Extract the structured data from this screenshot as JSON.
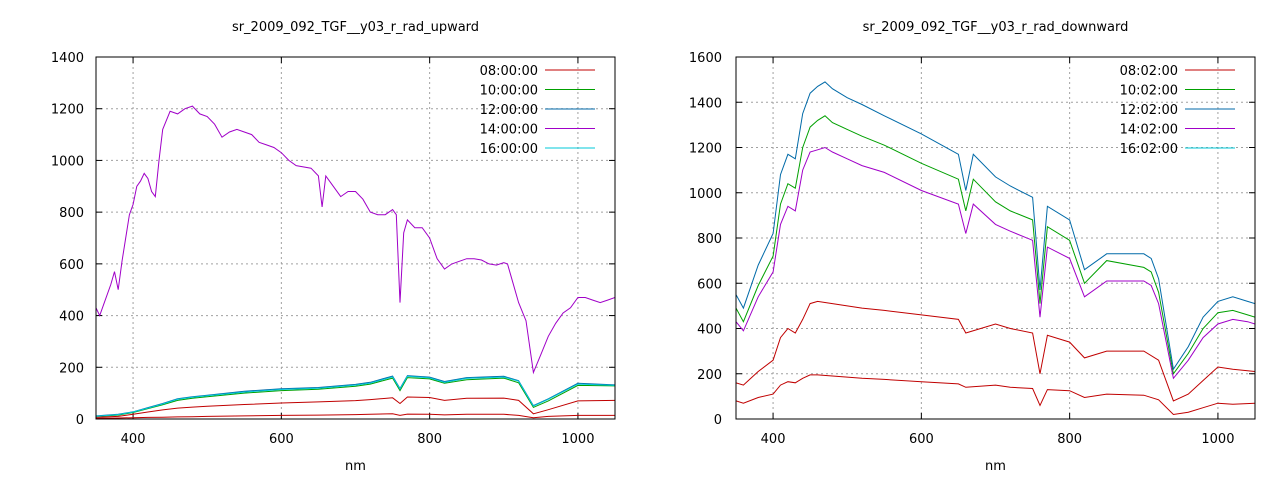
{
  "chart_data": [
    {
      "type": "line",
      "title": "sr_2009_092_TGF__y03_r_rad_upward",
      "xlabel": "nm",
      "ylabel": "",
      "xlim": [
        350,
        1050
      ],
      "ylim": [
        0,
        1400
      ],
      "xticks": [
        400,
        600,
        800,
        1000
      ],
      "yticks": [
        0,
        200,
        400,
        600,
        800,
        1000,
        1200,
        1400
      ],
      "grid": true,
      "legend": "top-right",
      "series": [
        {
          "name": "08:00:00",
          "color": "#c00000",
          "x": [
            350,
            380,
            400,
            420,
            440,
            460,
            480,
            500,
            550,
            600,
            650,
            700,
            720,
            750,
            760,
            770,
            800,
            820,
            850,
            900,
            920,
            940,
            960,
            1000,
            1050
          ],
          "y": [
            3,
            4,
            5,
            6,
            7,
            8,
            9,
            10,
            12,
            14,
            15,
            17,
            18,
            20,
            14,
            19,
            18,
            16,
            18,
            18,
            14,
            5,
            10,
            14,
            14
          ]
        },
        {
          "name": "08:00:00",
          "color": "#c00000",
          "x": [
            350,
            380,
            400,
            420,
            440,
            460,
            480,
            500,
            550,
            600,
            650,
            700,
            720,
            750,
            760,
            770,
            800,
            820,
            850,
            900,
            920,
            940,
            960,
            1000,
            1050
          ],
          "y": [
            7,
            10,
            18,
            27,
            35,
            42,
            46,
            49,
            56,
            62,
            66,
            71,
            75,
            82,
            60,
            85,
            83,
            72,
            80,
            81,
            72,
            20,
            36,
            70,
            72
          ]
        },
        {
          "name": "10:00:00",
          "color": "#00a000",
          "x": [
            350,
            380,
            400,
            420,
            440,
            460,
            480,
            500,
            550,
            600,
            650,
            700,
            720,
            750,
            760,
            770,
            800,
            820,
            850,
            900,
            920,
            940,
            960,
            1000,
            1050
          ],
          "y": [
            10,
            15,
            25,
            40,
            55,
            72,
            80,
            86,
            100,
            110,
            115,
            127,
            135,
            158,
            110,
            160,
            155,
            138,
            152,
            158,
            140,
            45,
            70,
            130,
            128
          ]
        },
        {
          "name": "12:00:00",
          "color": "#006aa8",
          "x": [
            350,
            380,
            400,
            420,
            440,
            460,
            480,
            500,
            550,
            600,
            650,
            700,
            720,
            750,
            760,
            770,
            800,
            820,
            850,
            900,
            920,
            940,
            960,
            1000,
            1050
          ],
          "y": [
            12,
            18,
            28,
            44,
            60,
            78,
            86,
            92,
            107,
            117,
            122,
            134,
            142,
            166,
            118,
            168,
            162,
            145,
            160,
            165,
            148,
            52,
            78,
            138,
            132
          ]
        },
        {
          "name": "14:00:00",
          "color": "#a000c8",
          "x": [
            350,
            355,
            360,
            370,
            375,
            380,
            385,
            390,
            395,
            400,
            405,
            410,
            415,
            420,
            425,
            430,
            435,
            440,
            450,
            460,
            470,
            480,
            490,
            500,
            510,
            520,
            530,
            540,
            550,
            560,
            570,
            580,
            590,
            600,
            610,
            620,
            640,
            650,
            655,
            660,
            670,
            680,
            690,
            700,
            710,
            720,
            730,
            740,
            750,
            755,
            760,
            765,
            770,
            780,
            790,
            800,
            810,
            820,
            830,
            840,
            850,
            860,
            870,
            880,
            890,
            900,
            905,
            910,
            920,
            930,
            940,
            950,
            960,
            970,
            980,
            990,
            1000,
            1010,
            1020,
            1030,
            1040,
            1050
          ],
          "y": [
            430,
            400,
            440,
            520,
            570,
            500,
            610,
            700,
            790,
            830,
            900,
            920,
            950,
            930,
            880,
            860,
            1000,
            1120,
            1190,
            1180,
            1200,
            1210,
            1180,
            1170,
            1140,
            1090,
            1110,
            1120,
            1110,
            1100,
            1070,
            1060,
            1050,
            1030,
            1000,
            980,
            970,
            940,
            820,
            940,
            900,
            860,
            880,
            880,
            850,
            800,
            790,
            790,
            810,
            790,
            450,
            720,
            770,
            740,
            740,
            700,
            620,
            580,
            600,
            610,
            620,
            620,
            615,
            600,
            595,
            605,
            600,
            550,
            450,
            380,
            180,
            250,
            320,
            370,
            410,
            430,
            470,
            470,
            460,
            450,
            460,
            470
          ]
        },
        {
          "name": "16:00:00",
          "color": "#00c8d8",
          "x": [
            350,
            380,
            400,
            420,
            440,
            460,
            480,
            500,
            550,
            600,
            650,
            700,
            720,
            750,
            760,
            770,
            800,
            820,
            850,
            900,
            920,
            940,
            960,
            1000,
            1050
          ],
          "y": [
            11,
            17,
            27,
            42,
            58,
            76,
            84,
            90,
            104,
            114,
            119,
            131,
            139,
            163,
            116,
            165,
            159,
            142,
            157,
            162,
            146,
            50,
            76,
            135,
            130
          ]
        }
      ]
    },
    {
      "type": "line",
      "title": "sr_2009_092_TGF__y03_r_rad_downward",
      "xlabel": "nm",
      "ylabel": "",
      "xlim": [
        350,
        1050
      ],
      "ylim": [
        0,
        1600
      ],
      "xticks": [
        400,
        600,
        800,
        1000
      ],
      "yticks": [
        0,
        200,
        400,
        600,
        800,
        1000,
        1200,
        1400,
        1600
      ],
      "grid": true,
      "legend": "top-right",
      "series": [
        {
          "name": "08:02:00",
          "color": "#c00000",
          "x": [
            350,
            360,
            380,
            400,
            410,
            420,
            430,
            440,
            450,
            460,
            480,
            500,
            520,
            550,
            600,
            650,
            660,
            700,
            720,
            750,
            760,
            770,
            800,
            820,
            850,
            900,
            920,
            940,
            960,
            980,
            1000,
            1020,
            1050
          ],
          "y": [
            80,
            70,
            95,
            110,
            150,
            165,
            160,
            180,
            195,
            195,
            190,
            185,
            180,
            175,
            165,
            155,
            140,
            150,
            140,
            135,
            60,
            130,
            125,
            95,
            110,
            105,
            85,
            20,
            30,
            50,
            70,
            65,
            70
          ]
        },
        {
          "name": "08:02:00",
          "color": "#c00000",
          "x": [
            350,
            360,
            380,
            400,
            410,
            420,
            430,
            440,
            450,
            460,
            480,
            500,
            520,
            550,
            600,
            650,
            660,
            700,
            720,
            750,
            760,
            770,
            800,
            820,
            850,
            900,
            920,
            940,
            960,
            980,
            1000,
            1020,
            1050
          ],
          "y": [
            160,
            150,
            210,
            260,
            360,
            400,
            380,
            440,
            510,
            520,
            510,
            500,
            490,
            480,
            460,
            440,
            380,
            420,
            400,
            380,
            200,
            370,
            340,
            270,
            300,
            300,
            260,
            80,
            110,
            170,
            230,
            220,
            210
          ]
        },
        {
          "name": "10:02:00",
          "color": "#00a000",
          "x": [
            350,
            360,
            380,
            400,
            410,
            420,
            430,
            440,
            450,
            460,
            470,
            480,
            500,
            520,
            550,
            600,
            650,
            660,
            670,
            700,
            720,
            750,
            755,
            760,
            770,
            800,
            820,
            850,
            900,
            910,
            920,
            940,
            960,
            980,
            1000,
            1020,
            1040,
            1050
          ],
          "y": [
            490,
            430,
            590,
            720,
            950,
            1040,
            1020,
            1200,
            1290,
            1320,
            1340,
            1310,
            1280,
            1250,
            1210,
            1130,
            1060,
            920,
            1060,
            960,
            920,
            880,
            700,
            510,
            850,
            790,
            600,
            700,
            670,
            650,
            560,
            200,
            290,
            400,
            470,
            480,
            460,
            450
          ]
        },
        {
          "name": "12:02:00",
          "color": "#006aa8",
          "x": [
            350,
            360,
            380,
            400,
            410,
            420,
            430,
            440,
            450,
            460,
            470,
            480,
            500,
            520,
            550,
            600,
            650,
            660,
            670,
            700,
            720,
            750,
            755,
            760,
            770,
            800,
            820,
            850,
            900,
            910,
            920,
            940,
            960,
            980,
            1000,
            1020,
            1040,
            1050
          ],
          "y": [
            550,
            490,
            680,
            820,
            1080,
            1170,
            1150,
            1350,
            1440,
            1470,
            1490,
            1460,
            1420,
            1390,
            1340,
            1260,
            1170,
            1010,
            1170,
            1070,
            1030,
            980,
            780,
            570,
            940,
            880,
            660,
            730,
            730,
            710,
            620,
            220,
            320,
            450,
            520,
            540,
            520,
            510
          ]
        },
        {
          "name": "14:02:00",
          "color": "#a000c8",
          "x": [
            350,
            360,
            380,
            400,
            410,
            420,
            430,
            440,
            450,
            460,
            470,
            480,
            500,
            520,
            550,
            600,
            650,
            660,
            670,
            700,
            720,
            750,
            755,
            760,
            770,
            800,
            820,
            850,
            900,
            910,
            920,
            940,
            960,
            980,
            1000,
            1020,
            1040,
            1050
          ],
          "y": [
            430,
            390,
            540,
            650,
            860,
            940,
            920,
            1100,
            1180,
            1190,
            1200,
            1180,
            1150,
            1120,
            1090,
            1010,
            950,
            820,
            950,
            860,
            830,
            790,
            620,
            450,
            760,
            710,
            540,
            610,
            610,
            590,
            510,
            180,
            260,
            360,
            420,
            440,
            430,
            420
          ]
        },
        {
          "name": "16:02:00",
          "color": "#00c8d8",
          "x": [],
          "y": []
        }
      ]
    }
  ]
}
